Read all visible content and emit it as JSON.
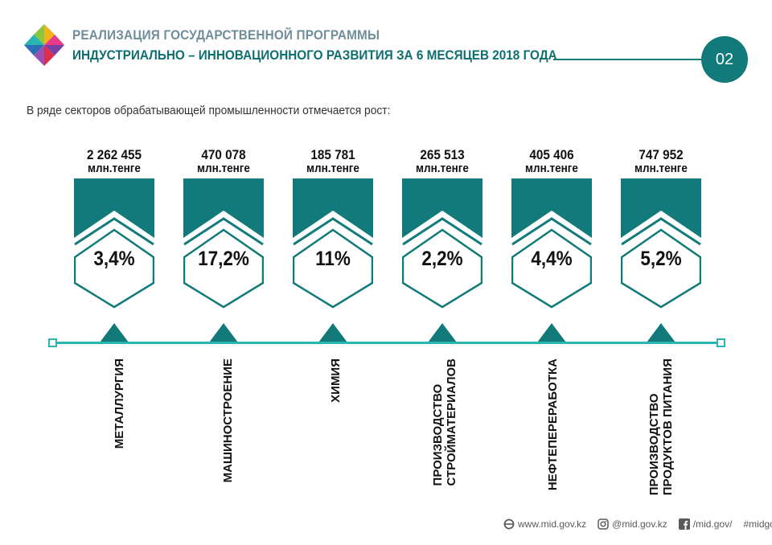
{
  "header": {
    "title_line1": "РЕАЛИЗАЦИЯ ГОСУДАРСТВЕННОЙ ПРОГРАММЫ",
    "title_line2": "ИНДУСТРИАЛЬНО – ИННОВАЦИОННОГО РАЗВИТИЯ ЗА 6 МЕСЯЦЕВ 2018 ГОДА",
    "page_number": "02"
  },
  "subtitle": "В ряде секторов обрабатывающей промышленности отмечается рост:",
  "sectors": [
    {
      "value": "2 262 455",
      "unit": "млн.тенге",
      "percent": "3,4%",
      "label": "МЕТАЛЛУРГИЯ"
    },
    {
      "value": "470 078",
      "unit": "млн.тенге",
      "percent": "17,2%",
      "label": "МАШИНОСТРОЕНИЕ"
    },
    {
      "value": "185 781",
      "unit": "млн.тенге",
      "percent": "11%",
      "label": "ХИМИЯ"
    },
    {
      "value": "265 513",
      "unit": "млн.тенге",
      "percent": "2,2%",
      "label": "ПРОИЗВОДСТВО\nСТРОЙМАТЕРИАЛОВ"
    },
    {
      "value": "405 406",
      "unit": "млн.тенге",
      "percent": "4,4%",
      "label": "НЕФТЕПЕРЕРАБОТКА"
    },
    {
      "value": "747 952",
      "unit": "млн.тенге",
      "percent": "5,2%",
      "label": "ПРОИЗВОДСТВО\nПРОДУКТОВ ПИТАНИЯ"
    }
  ],
  "footer": {
    "website": "www.mid.gov.kz",
    "instagram": "@mid.gov.kz",
    "facebook": "/mid.gov/",
    "hashtag": "#midgovkz"
  },
  "colors": {
    "accent": "#127a7a",
    "axis": "#2ab5b0",
    "title_muted": "#6f8e9a"
  }
}
